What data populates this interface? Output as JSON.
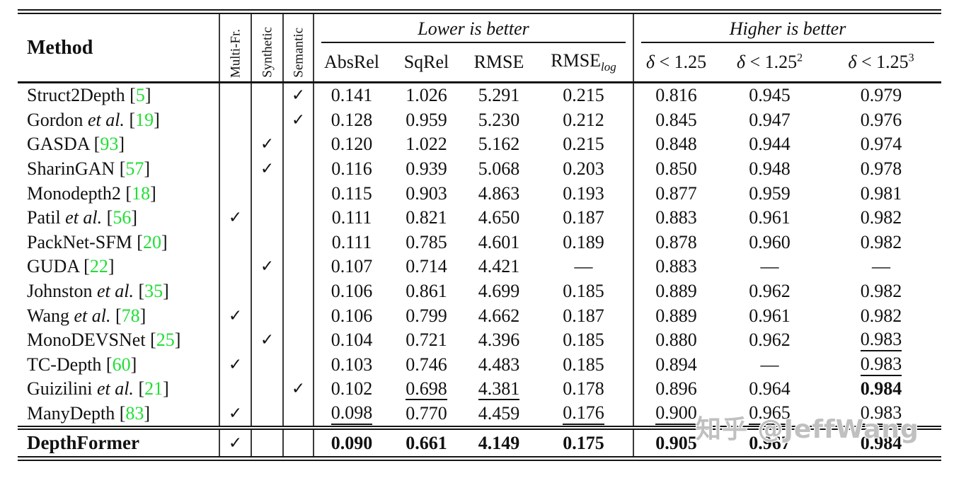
{
  "watermark": "知乎 @JeffWang",
  "colors": {
    "citation_green": "#20df33",
    "rule_black": "#141414",
    "bar_gray": "#3a3a3a",
    "watermark_gray": "#a8a8a8"
  },
  "table": {
    "method_header": "Method",
    "flag_headers": [
      "Multi-Fr.",
      "Synthetic",
      "Semantic"
    ],
    "group_lower": "Lower is better",
    "group_higher": "Higher is better",
    "lower_headers": [
      {
        "text": "AbsRel"
      },
      {
        "text": "SqRel"
      },
      {
        "text": "RMSE"
      },
      {
        "text": "RMSE",
        "sub": "log"
      }
    ],
    "higher_headers": [
      {
        "italic_prefix": "δ",
        "text": " < 1.25"
      },
      {
        "italic_prefix": "δ",
        "text": " < 1.25",
        "sup": "2"
      },
      {
        "italic_prefix": "δ",
        "text": " < 1.25",
        "sup": "3"
      }
    ],
    "checkmark": "✓",
    "rows": [
      {
        "name": "Struct2Depth",
        "etal": false,
        "cite": "5",
        "flags": [
          0,
          0,
          1
        ],
        "values": [
          "0.141",
          "1.026",
          "5.291",
          "0.215",
          "0.816",
          "0.945",
          "0.979"
        ],
        "styles": [
          "",
          "",
          "",
          "",
          "",
          "",
          ""
        ]
      },
      {
        "name": "Gordon",
        "etal": true,
        "cite": "19",
        "flags": [
          0,
          0,
          1
        ],
        "values": [
          "0.128",
          "0.959",
          "5.230",
          "0.212",
          "0.845",
          "0.947",
          "0.976"
        ],
        "styles": [
          "",
          "",
          "",
          "",
          "",
          "",
          ""
        ]
      },
      {
        "name": "GASDA",
        "etal": false,
        "cite": "93",
        "flags": [
          0,
          1,
          0
        ],
        "values": [
          "0.120",
          "1.022",
          "5.162",
          "0.215",
          "0.848",
          "0.944",
          "0.974"
        ],
        "styles": [
          "",
          "",
          "",
          "",
          "",
          "",
          ""
        ]
      },
      {
        "name": "SharinGAN",
        "etal": false,
        "cite": "57",
        "flags": [
          0,
          1,
          0
        ],
        "values": [
          "0.116",
          "0.939",
          "5.068",
          "0.203",
          "0.850",
          "0.948",
          "0.978"
        ],
        "styles": [
          "",
          "",
          "",
          "",
          "",
          "",
          ""
        ]
      },
      {
        "name": "Monodepth2",
        "etal": false,
        "cite": "18",
        "flags": [
          0,
          0,
          0
        ],
        "values": [
          "0.115",
          "0.903",
          "4.863",
          "0.193",
          "0.877",
          "0.959",
          "0.981"
        ],
        "styles": [
          "",
          "",
          "",
          "",
          "",
          "",
          ""
        ]
      },
      {
        "name": "Patil",
        "etal": true,
        "cite": "56",
        "flags": [
          1,
          0,
          0
        ],
        "values": [
          "0.111",
          "0.821",
          "4.650",
          "0.187",
          "0.883",
          "0.961",
          "0.982"
        ],
        "styles": [
          "",
          "",
          "",
          "",
          "",
          "",
          ""
        ]
      },
      {
        "name": "PackNet-SFM",
        "etal": false,
        "cite": "20",
        "flags": [
          0,
          0,
          0
        ],
        "values": [
          "0.111",
          "0.785",
          "4.601",
          "0.189",
          "0.878",
          "0.960",
          "0.982"
        ],
        "styles": [
          "",
          "",
          "",
          "",
          "",
          "",
          ""
        ]
      },
      {
        "name": "GUDA",
        "etal": false,
        "cite": "22",
        "flags": [
          0,
          1,
          0
        ],
        "values": [
          "0.107",
          "0.714",
          "4.421",
          "—",
          "0.883",
          "—",
          "—"
        ],
        "styles": [
          "",
          "",
          "",
          "",
          "",
          "",
          ""
        ]
      },
      {
        "name": "Johnston",
        "etal": true,
        "cite": "35",
        "flags": [
          0,
          0,
          0
        ],
        "values": [
          "0.106",
          "0.861",
          "4.699",
          "0.185",
          "0.889",
          "0.962",
          "0.982"
        ],
        "styles": [
          "",
          "",
          "",
          "",
          "",
          "",
          ""
        ]
      },
      {
        "name": "Wang",
        "etal": true,
        "cite": "78",
        "flags": [
          1,
          0,
          0
        ],
        "values": [
          "0.106",
          "0.799",
          "4.662",
          "0.187",
          "0.889",
          "0.961",
          "0.982"
        ],
        "styles": [
          "",
          "",
          "",
          "",
          "",
          "",
          ""
        ]
      },
      {
        "name": "MonoDEVSNet",
        "etal": false,
        "cite": "25",
        "flags": [
          0,
          1,
          0
        ],
        "values": [
          "0.104",
          "0.721",
          "4.396",
          "0.185",
          "0.880",
          "0.962",
          "0.983"
        ],
        "styles": [
          "",
          "",
          "",
          "",
          "",
          "",
          "u"
        ]
      },
      {
        "name": "TC-Depth",
        "etal": false,
        "cite": "60",
        "flags": [
          1,
          0,
          0
        ],
        "values": [
          "0.103",
          "0.746",
          "4.483",
          "0.185",
          "0.894",
          "—",
          "0.983"
        ],
        "styles": [
          "",
          "",
          "",
          "",
          "",
          "",
          "u"
        ]
      },
      {
        "name": "Guizilini",
        "etal": true,
        "cite": "21",
        "flags": [
          0,
          0,
          1
        ],
        "values": [
          "0.102",
          "0.698",
          "4.381",
          "0.178",
          "0.896",
          "0.964",
          "0.984"
        ],
        "styles": [
          "",
          "u",
          "u",
          "",
          "",
          "",
          "b"
        ]
      },
      {
        "name": "ManyDepth",
        "etal": false,
        "cite": "83",
        "flags": [
          1,
          0,
          0
        ],
        "values": [
          "0.098",
          "0.770",
          "4.459",
          "0.176",
          "0.900",
          "0.965",
          "0.983"
        ],
        "styles": [
          "u",
          "",
          "",
          "u",
          "u",
          "u",
          "u"
        ]
      }
    ],
    "final_row": {
      "name": "DepthFormer",
      "flags": [
        1,
        0,
        0
      ],
      "values": [
        "0.090",
        "0.661",
        "4.149",
        "0.175",
        "0.905",
        "0.967",
        "0.984"
      ]
    }
  }
}
